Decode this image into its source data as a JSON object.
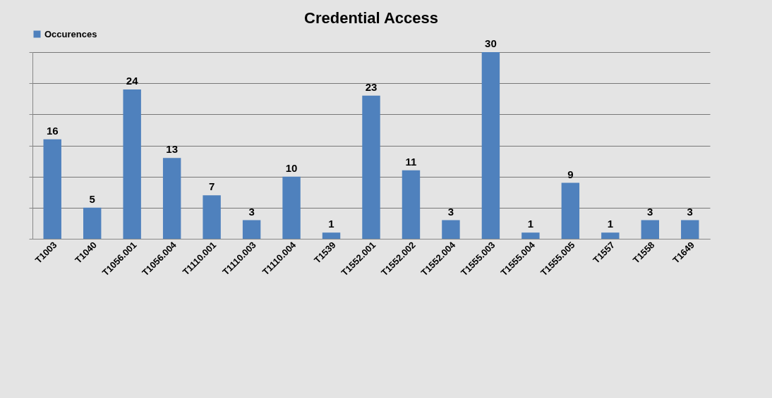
{
  "chart_data": {
    "type": "bar",
    "title": "Credential Access",
    "categories": [
      "T1003",
      "T1040",
      "T1056.001",
      "T1056.004",
      "T1110.001",
      "T1110.003",
      "T1110.004",
      "T1539",
      "T1552.001",
      "T1552.002",
      "T1552.004",
      "T1555.003",
      "T1555.004",
      "T1555.005",
      "T1557",
      "T1558",
      "T1649"
    ],
    "series": [
      {
        "name": "Occurences",
        "color": "#4f81bd",
        "values": [
          16,
          5,
          24,
          13,
          7,
          3,
          10,
          1,
          23,
          11,
          3,
          30,
          1,
          9,
          1,
          3,
          3
        ]
      }
    ],
    "ylim": [
      0,
      30
    ],
    "yticks": [
      {
        "value": 0,
        "label": null
      },
      {
        "value": 5,
        "label": null
      },
      {
        "value": 10,
        "label": null
      },
      {
        "value": 15,
        "label": null
      },
      {
        "value": 20,
        "label": null
      },
      {
        "value": 25,
        "label": null
      },
      {
        "value": 30,
        "label": null
      }
    ],
    "tick_labels": "x",
    "grid": "y",
    "legend": "top",
    "data_labels": true
  }
}
